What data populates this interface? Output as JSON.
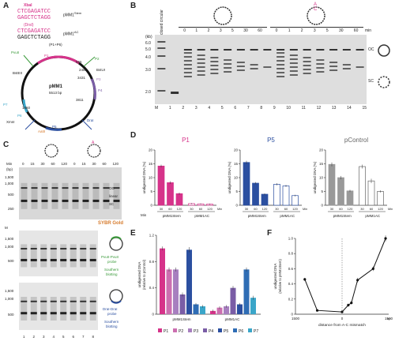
{
  "panels": {
    "A": "A",
    "B": "B",
    "C": "C",
    "D": "D",
    "E": "E",
    "F": "F"
  },
  "panel_a": {
    "xbaI_label": "XbaI",
    "seq_top_1": "CTCGAGATCC",
    "seq_bot_1": "GAGCTCTAGG",
    "seq_name_1": "pMM1",
    "seq_name_1_sup": "Stem",
    "dnd_label": "(Dnd)",
    "seq_top_2": "CTCGAGATCC",
    "seq_bot_2": "GAGCTCTAGG",
    "seq_name_2": "pMM1",
    "seq_name_2_sup": "AC",
    "seq_suffix": "(P1+P6)",
    "plasmid_name": "pMM1",
    "plasmid_size": "5513 bp",
    "sites": [
      "P1",
      "P2",
      "P3",
      "P4",
      "P5",
      "P6",
      "P7",
      "PvuII",
      "DraI",
      "XmnI",
      "BstUI",
      "BstEII",
      "AatII"
    ],
    "nums": [
      "565",
      "2461",
      "3431",
      "3811",
      "1860",
      "2651",
      "4488"
    ]
  },
  "panel_b": {
    "col_closed": "closed circular",
    "minutes": [
      "0",
      "1",
      "2",
      "3",
      "5",
      "30",
      "60"
    ],
    "min_unit": "min",
    "kb_unit": "(kb)",
    "markers": [
      "6.0",
      "5.0",
      "4.0",
      "3.0",
      "2.0"
    ],
    "lanes": [
      "M",
      "1",
      "2",
      "3",
      "4",
      "5",
      "6",
      "7",
      "8",
      "9",
      "10",
      "11",
      "12",
      "13",
      "14",
      "15"
    ],
    "oc_label": "OC",
    "sc_label": "SC"
  },
  "panel_c": {
    "min_row": [
      "0",
      "15",
      "30",
      "60",
      "120",
      "0",
      "15",
      "30",
      "60",
      "120"
    ],
    "min_label": "Min",
    "bp_unit": "(bp)",
    "markers_top": [
      "1,500",
      "1,000",
      "500",
      "250"
    ],
    "markers_mid": [
      "1,500",
      "1,000",
      "500"
    ],
    "markers_bot": [
      "1,500",
      "1,000",
      "500"
    ],
    "m_label": "M",
    "oc_label": "OC",
    "sc_label": "SC",
    "linear_label": "linear",
    "sybr": "SYBR Gold",
    "probe1_a": "PvuII-PvuII",
    "probe1_b": "probe",
    "southern1_a": "Southern",
    "southern1_b": "blotting",
    "probe2_a": "DraI-DraI",
    "probe2_b": "probe",
    "southern2_a": "Southern",
    "southern2_b": "blotting",
    "lanes": [
      "1",
      "2",
      "3",
      "4",
      "5",
      "6",
      "7",
      "8"
    ]
  },
  "panel_d": {
    "ylabel": "undigested DNA (%)",
    "min_label": "Min",
    "plasmid1": "pMM1",
    "plasmid1_sup": "Stem",
    "plasmid2": "pMM1",
    "plasmid2_sup": "AC"
  },
  "panel_e": {
    "ylabel_a": "undigested DNA",
    "ylabel_b": "(relative to pControl)",
    "group1": "pMM1",
    "group1_sup": "Stem",
    "group2": "pMM1",
    "group2_sup": "AC"
  },
  "panel_f": {
    "ylabel_a": "undigested DNA",
    "ylabel_b": "(relative to pMM1",
    "ylabel_c": "Stem",
    "ylabel_d": ")",
    "xlabel": "distance from A-C mismatch",
    "xunit": "bp"
  },
  "chart_data": [
    {
      "type": "bar",
      "title": "P1",
      "categories": [
        "30",
        "60",
        "120",
        "30",
        "60",
        "120"
      ],
      "groups": [
        "pMM1Stem",
        "pMM1AC"
      ],
      "values": [
        14.2,
        8.2,
        4.2,
        0.6,
        0.5,
        0.4
      ],
      "errors": [
        0.5,
        0.5,
        0.4,
        0.2,
        0.2,
        0.2
      ],
      "ylim": [
        0,
        20
      ],
      "yticks": [
        "0",
        "5",
        "10",
        "15",
        "20"
      ],
      "colors": [
        "#d6338a",
        "#d6338a",
        "#d6338a",
        "#ffffff",
        "#ffffff",
        "#ffffff"
      ]
    },
    {
      "type": "bar",
      "title": "P5",
      "categories": [
        "30",
        "60",
        "120",
        "30",
        "60",
        "120"
      ],
      "groups": [
        "pMM1Stem",
        "pMM1AC"
      ],
      "values": [
        15.5,
        8.0,
        4.0,
        7.6,
        7.0,
        3.5
      ],
      "errors": [
        0.6,
        0.4,
        0.3,
        0.4,
        0.4,
        0.3
      ],
      "ylim": [
        0,
        20
      ],
      "yticks": [
        "0",
        "5",
        "10",
        "15",
        "20"
      ],
      "colors": [
        "#2b4fa0",
        "#2b4fa0",
        "#2b4fa0",
        "#ffffff",
        "#ffffff",
        "#ffffff"
      ]
    },
    {
      "type": "bar",
      "title": "pControl",
      "categories": [
        "30",
        "60",
        "120",
        "30",
        "60",
        "120"
      ],
      "groups": [
        "pMM1Stem",
        "pMM1AC"
      ],
      "values": [
        14.8,
        10.0,
        5.2,
        14.0,
        8.8,
        5.0
      ],
      "errors": [
        0.7,
        0.6,
        0.4,
        0.7,
        0.8,
        0.4
      ],
      "ylim": [
        0,
        20
      ],
      "yticks": [
        "0",
        "5",
        "10",
        "15",
        "20"
      ],
      "colors": [
        "#999999",
        "#999999",
        "#999999",
        "#ffffff",
        "#ffffff",
        "#ffffff"
      ]
    },
    {
      "type": "bar",
      "categories": [
        "P1",
        "P2",
        "P3",
        "P4",
        "P5",
        "P6",
        "P7"
      ],
      "series": [
        {
          "values": [
            1.0,
            0.68,
            0.68,
            0.3,
            0.98,
            0.15,
            0.12
          ],
          "errors": [
            0.03,
            0.03,
            0.03,
            0.03,
            0.04,
            0.02,
            0.02
          ]
        },
        {
          "values": [
            0.05,
            0.1,
            0.12,
            0.4,
            0.15,
            0.68,
            0.25
          ],
          "errors": [
            0.02,
            0.02,
            0.02,
            0.03,
            0.02,
            0.03,
            0.03
          ]
        }
      ],
      "colors": [
        "#d6338a",
        "#cc6fb0",
        "#a77fbf",
        "#7a5da6",
        "#2b4fa0",
        "#2f6db5",
        "#3aa6c9"
      ],
      "ylim": [
        0,
        1.2
      ],
      "yticks": [
        "0",
        "0.4",
        "0.8",
        "1.2"
      ]
    },
    {
      "type": "line",
      "x": [
        -1200,
        -800,
        0,
        200,
        300,
        500,
        1000,
        1400
      ],
      "y": [
        0.46,
        0.05,
        0.03,
        0.12,
        0.15,
        0.45,
        0.6,
        1.0
      ],
      "errors": [
        0.02,
        0.01,
        0.01,
        0.02,
        0.02,
        0.03,
        0.03,
        0.04
      ],
      "xlim": [
        -1500,
        1500
      ],
      "ylim": [
        0,
        1.0
      ],
      "yticks": [
        "0",
        "0.2",
        "0.4",
        "0.6",
        "0.8",
        "1.0"
      ],
      "xticks": [
        "1500",
        "0",
        "1500"
      ]
    }
  ]
}
